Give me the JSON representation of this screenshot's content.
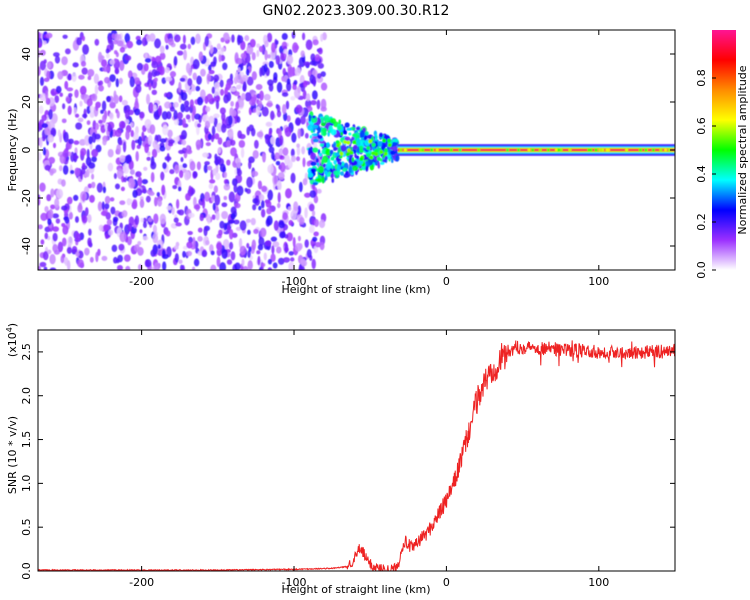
{
  "title": "GN02.2023.309.00.30.R12",
  "chart_data": [
    {
      "type": "heatmap",
      "xlabel": "Height of straight line (km)",
      "ylabel": "Frequency (Hz)",
      "xlim": [
        -268,
        150
      ],
      "ylim": [
        -50,
        50
      ],
      "xticks": [
        -200,
        -100,
        0,
        100
      ],
      "yticks": [
        -40,
        -20,
        0,
        20,
        40
      ],
      "colorbar": {
        "label": "Normalized spectral amplitude",
        "range": [
          0,
          1
        ],
        "ticks": [
          "0.0",
          "0.2",
          "0.4",
          "0.6",
          "0.8"
        ],
        "stops": [
          "#ffffff",
          "#9b30ff",
          "#0000ff",
          "#00ffff",
          "#00ff00",
          "#ffff00",
          "#ff8c00",
          "#ff0000",
          "#ff1493"
        ]
      },
      "regions": [
        {
          "x_range": [
            -268,
            -80
          ],
          "f_range": [
            -50,
            48
          ],
          "description_value": "broadband noise",
          "amplitude": 0.15
        },
        {
          "x_range": [
            -90,
            -32
          ],
          "f_range": [
            -12,
            12
          ],
          "description_value": "transition",
          "amplitude": 0.35
        },
        {
          "x_range": [
            -32,
            150
          ],
          "f_range": [
            -2,
            2
          ],
          "description_value": "narrow carrier at 0 Hz",
          "amplitude": 0.95
        }
      ]
    },
    {
      "type": "line",
      "xlabel": "Height of straight line (km)",
      "ylabel": "SNR (10 * v/v)",
      "y_multiplier": "(x10",
      "y_multiplier_exp": "4",
      "xlim": [
        -268,
        150
      ],
      "ylim": [
        0,
        2.75
      ],
      "xticks": [
        -200,
        -100,
        0,
        100
      ],
      "yticks": [
        0.0,
        0.5,
        1.0,
        1.5,
        2.0,
        2.5
      ],
      "series": [
        {
          "color": "#ee2222",
          "x": [
            -268,
            -200,
            -150,
            -100,
            -75,
            -65,
            -60,
            -57,
            -55,
            -52,
            -48,
            -45,
            -40,
            -35,
            -32,
            -30,
            -28,
            -25,
            -22,
            -20,
            -18,
            -15,
            -12,
            -10,
            -5,
            0,
            5,
            10,
            15,
            20,
            25,
            30,
            35,
            40,
            45,
            50,
            60,
            80,
            100,
            120,
            140,
            150
          ],
          "y": [
            0.01,
            0.01,
            0.01,
            0.02,
            0.03,
            0.05,
            0.15,
            0.25,
            0.22,
            0.12,
            0.05,
            0.03,
            0.02,
            0.02,
            0.05,
            0.2,
            0.35,
            0.3,
            0.25,
            0.3,
            0.35,
            0.4,
            0.45,
            0.5,
            0.65,
            0.8,
            1.0,
            1.3,
            1.6,
            1.95,
            2.15,
            2.3,
            2.4,
            2.5,
            2.55,
            2.55,
            2.55,
            2.52,
            2.5,
            2.5,
            2.5,
            2.52
          ]
        }
      ]
    }
  ]
}
